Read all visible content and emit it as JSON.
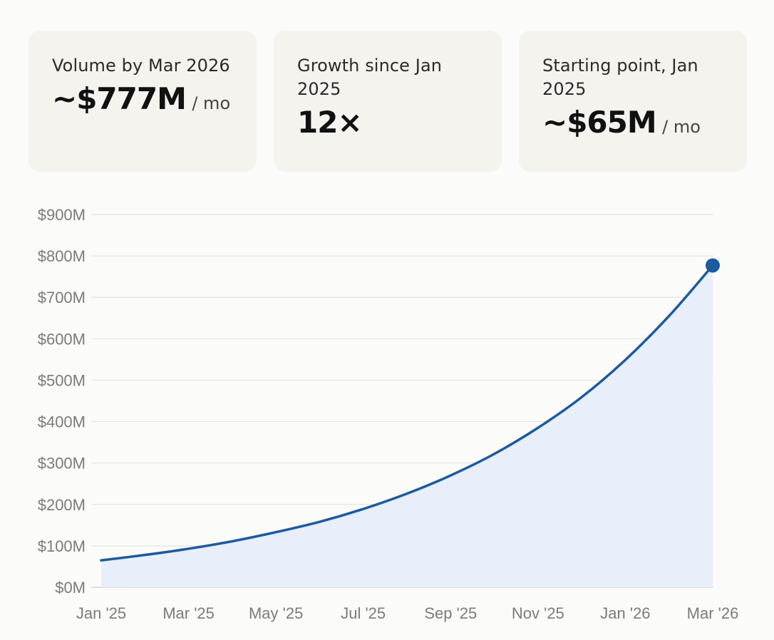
{
  "cards": [
    {
      "label": "Volume by Mar 2026",
      "value": "~$777M",
      "unit": "/ mo"
    },
    {
      "label": "Growth since Jan 2025",
      "value": "12×",
      "unit": ""
    },
    {
      "label": "Starting point, Jan 2025",
      "value": "~$65M",
      "unit": "/ mo"
    }
  ],
  "colors": {
    "line": "#1d5a9e",
    "area": "#e8effb",
    "grid": "#e4e4e4",
    "axis": "#cfcfcf",
    "card_bg": "#f4f3ee"
  },
  "chart_data": {
    "type": "area",
    "title": "",
    "xlabel": "",
    "ylabel": "",
    "ylim": [
      0,
      900
    ],
    "y_unit": "$M",
    "y_ticks": [
      "$0M",
      "$100M",
      "$200M",
      "$300M",
      "$400M",
      "$500M",
      "$600M",
      "$700M",
      "$800M",
      "$900M"
    ],
    "x_ticks": [
      "Jan '25",
      "Mar '25",
      "May '25",
      "Jul '25",
      "Sep '25",
      "Nov '25",
      "Jan '26",
      "Mar '26"
    ],
    "grid": true,
    "x": [
      "Jan '25",
      "Feb '25",
      "Mar '25",
      "Apr '25",
      "May '25",
      "Jun '25",
      "Jul '25",
      "Aug '25",
      "Sep '25",
      "Oct '25",
      "Nov '25",
      "Dec '25",
      "Jan '26",
      "Feb '26",
      "Mar '26"
    ],
    "values": [
      65,
      78,
      93,
      111,
      133,
      158,
      189,
      226,
      270,
      322,
      385,
      459,
      549,
      655,
      777
    ],
    "end_marker": {
      "x": "Mar '26",
      "value": 777
    }
  }
}
